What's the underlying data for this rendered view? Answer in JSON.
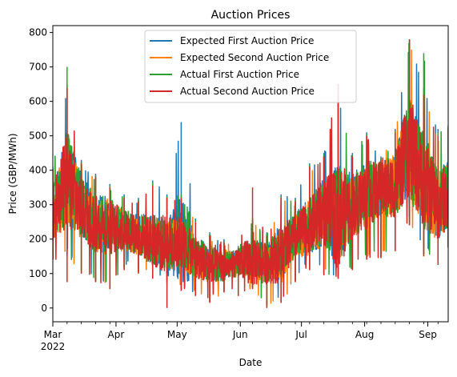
{
  "chart_data": {
    "type": "line",
    "title": "Auction Prices",
    "xlabel": "Date",
    "ylabel": "Price (GBP/MWh)",
    "x_range": [
      "2022-03-01",
      "2022-09-11"
    ],
    "ylim": [
      -40,
      820
    ],
    "y_ticks": [
      0,
      100,
      200,
      300,
      400,
      500,
      600,
      700,
      800
    ],
    "x_ticks": [
      {
        "date": "2022-03-01",
        "label": "Mar",
        "sublabel": "2022"
      },
      {
        "date": "2022-04-01",
        "label": "Apr",
        "sublabel": ""
      },
      {
        "date": "2022-05-01",
        "label": "May",
        "sublabel": ""
      },
      {
        "date": "2022-06-01",
        "label": "Jun",
        "sublabel": ""
      },
      {
        "date": "2022-07-01",
        "label": "Jul",
        "sublabel": ""
      },
      {
        "date": "2022-08-01",
        "label": "Aug",
        "sublabel": ""
      },
      {
        "date": "2022-09-01",
        "label": "Sep",
        "sublabel": ""
      }
    ],
    "grid": false,
    "legend_position": "top-center",
    "series": [
      {
        "name": "Expected First Auction Price",
        "color": "#1f77b4",
        "x": [
          "2022-03-01",
          "2022-03-08",
          "2022-03-15",
          "2022-03-22",
          "2022-03-29",
          "2022-04-05",
          "2022-04-12",
          "2022-04-19",
          "2022-04-26",
          "2022-05-03",
          "2022-05-10",
          "2022-05-17",
          "2022-05-24",
          "2022-05-31",
          "2022-06-07",
          "2022-06-14",
          "2022-06-21",
          "2022-06-28",
          "2022-07-05",
          "2022-07-12",
          "2022-07-19",
          "2022-07-26",
          "2022-08-02",
          "2022-08-09",
          "2022-08-16",
          "2022-08-23",
          "2022-08-30",
          "2022-09-06",
          "2022-09-11"
        ],
        "y": [
          280,
          380,
          300,
          250,
          240,
          230,
          215,
          200,
          185,
          200,
          150,
          130,
          120,
          135,
          145,
          130,
          160,
          210,
          240,
          280,
          270,
          300,
          330,
          350,
          360,
          480,
          370,
          300,
          330
        ],
        "max": [
          410,
          650,
          430,
          390,
          360,
          330,
          320,
          370,
          330,
          540,
          260,
          220,
          200,
          180,
          260,
          220,
          330,
          320,
          420,
          450,
          620,
          450,
          510,
          440,
          520,
          780,
          640,
          520,
          530
        ],
        "min": [
          150,
          160,
          110,
          80,
          60,
          120,
          110,
          90,
          80,
          60,
          40,
          20,
          50,
          40,
          60,
          10,
          20,
          80,
          120,
          100,
          90,
          120,
          150,
          150,
          170,
          250,
          160,
          150,
          180
        ]
      },
      {
        "name": "Expected Second Auction Price",
        "color": "#ff7f0e",
        "x": [
          "2022-03-01",
          "2022-03-08",
          "2022-03-15",
          "2022-03-22",
          "2022-03-29",
          "2022-04-05",
          "2022-04-12",
          "2022-04-19",
          "2022-04-26",
          "2022-05-03",
          "2022-05-10",
          "2022-05-17",
          "2022-05-24",
          "2022-05-31",
          "2022-06-07",
          "2022-06-14",
          "2022-06-21",
          "2022-06-28",
          "2022-07-05",
          "2022-07-12",
          "2022-07-19",
          "2022-07-26",
          "2022-08-02",
          "2022-08-09",
          "2022-08-16",
          "2022-08-23",
          "2022-08-30",
          "2022-09-06",
          "2022-09-11"
        ],
        "y": [
          270,
          360,
          290,
          240,
          235,
          225,
          210,
          195,
          180,
          190,
          145,
          125,
          118,
          130,
          140,
          128,
          155,
          205,
          235,
          275,
          265,
          295,
          325,
          345,
          355,
          470,
          360,
          295,
          325
        ],
        "max": [
          400,
          620,
          420,
          380,
          350,
          320,
          310,
          360,
          320,
          330,
          250,
          210,
          190,
          175,
          250,
          210,
          320,
          310,
          410,
          440,
          600,
          440,
          500,
          430,
          510,
          780,
          630,
          500,
          520
        ],
        "min": [
          140,
          150,
          100,
          75,
          55,
          110,
          100,
          85,
          70,
          50,
          35,
          15,
          45,
          35,
          55,
          5,
          15,
          75,
          110,
          95,
          85,
          110,
          140,
          145,
          165,
          240,
          150,
          140,
          175
        ]
      },
      {
        "name": "Actual First Auction Price",
        "color": "#2ca02c",
        "x": [
          "2022-03-01",
          "2022-03-08",
          "2022-03-15",
          "2022-03-22",
          "2022-03-29",
          "2022-04-05",
          "2022-04-12",
          "2022-04-19",
          "2022-04-26",
          "2022-05-03",
          "2022-05-10",
          "2022-05-17",
          "2022-05-24",
          "2022-05-31",
          "2022-06-07",
          "2022-06-14",
          "2022-06-21",
          "2022-06-28",
          "2022-07-05",
          "2022-07-12",
          "2022-07-19",
          "2022-07-26",
          "2022-08-02",
          "2022-08-09",
          "2022-08-16",
          "2022-08-23",
          "2022-08-30",
          "2022-09-06",
          "2022-09-11"
        ],
        "y": [
          275,
          370,
          295,
          245,
          238,
          228,
          212,
          198,
          183,
          195,
          148,
          128,
          119,
          133,
          143,
          129,
          158,
          208,
          238,
          278,
          268,
          298,
          328,
          348,
          358,
          475,
          365,
          298,
          328
        ],
        "max": [
          405,
          700,
          425,
          385,
          355,
          325,
          315,
          365,
          325,
          330,
          255,
          215,
          195,
          178,
          255,
          215,
          325,
          315,
          415,
          445,
          610,
          445,
          505,
          435,
          515,
          780,
          740,
          510,
          525
        ],
        "min": [
          145,
          155,
          105,
          78,
          58,
          115,
          105,
          88,
          75,
          55,
          38,
          18,
          48,
          38,
          58,
          8,
          18,
          78,
          115,
          98,
          88,
          115,
          145,
          148,
          168,
          245,
          155,
          145,
          178
        ]
      },
      {
        "name": "Actual Second Auction Price",
        "color": "#d62728",
        "x": [
          "2022-03-01",
          "2022-03-08",
          "2022-03-15",
          "2022-03-22",
          "2022-03-29",
          "2022-04-05",
          "2022-04-12",
          "2022-04-19",
          "2022-04-26",
          "2022-05-03",
          "2022-05-10",
          "2022-05-17",
          "2022-05-24",
          "2022-05-31",
          "2022-06-07",
          "2022-06-14",
          "2022-06-21",
          "2022-06-28",
          "2022-07-05",
          "2022-07-12",
          "2022-07-19",
          "2022-07-26",
          "2022-08-02",
          "2022-08-09",
          "2022-08-16",
          "2022-08-23",
          "2022-08-30",
          "2022-09-06",
          "2022-09-11"
        ],
        "y": [
          272,
          365,
          292,
          242,
          236,
          226,
          211,
          196,
          182,
          192,
          146,
          126,
          118,
          131,
          141,
          128,
          156,
          206,
          236,
          276,
          266,
          296,
          326,
          346,
          356,
          472,
          362,
          296,
          326
        ],
        "max": [
          400,
          640,
          420,
          380,
          350,
          320,
          310,
          355,
          320,
          320,
          250,
          210,
          190,
          175,
          350,
          210,
          320,
          310,
          410,
          440,
          650,
          440,
          500,
          430,
          510,
          780,
          620,
          500,
          520
        ],
        "min": [
          140,
          75,
          100,
          75,
          55,
          110,
          100,
          85,
          0,
          50,
          35,
          15,
          45,
          35,
          55,
          0,
          15,
          75,
          110,
          95,
          85,
          110,
          140,
          145,
          165,
          240,
          150,
          125,
          175
        ]
      }
    ]
  }
}
